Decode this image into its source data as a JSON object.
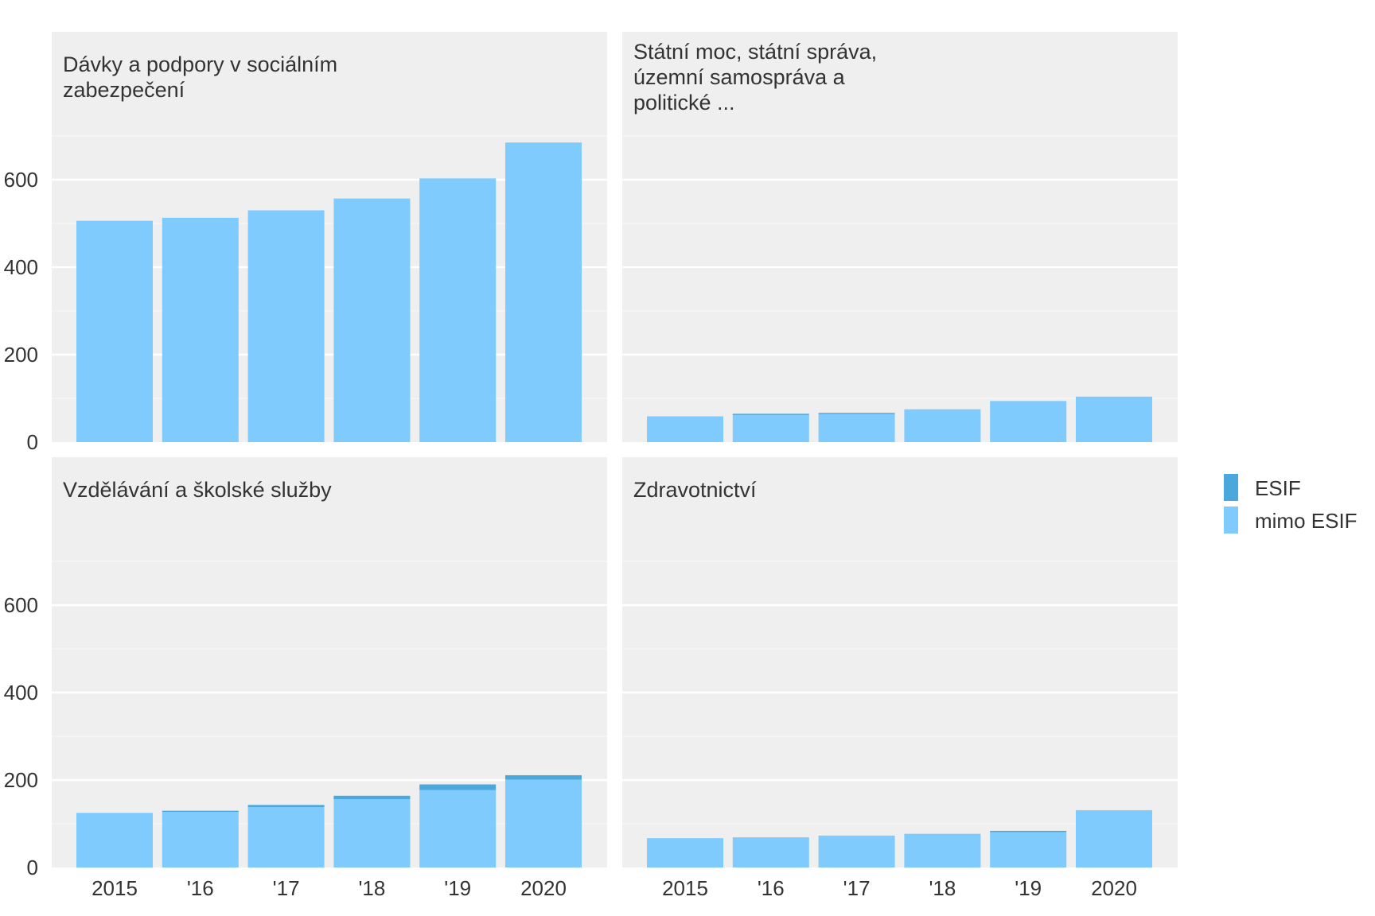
{
  "chart_data": {
    "type": "bar",
    "stacked": true,
    "layout": "facet-grid-2x2",
    "categories": [
      "2015",
      "'16",
      "'17",
      "'18",
      "'19",
      "2020"
    ],
    "y_ticks": [
      "0",
      "200",
      "400",
      "600"
    ],
    "ylim": [
      0,
      740
    ],
    "grid": true,
    "legend": {
      "position": "right",
      "entries": [
        {
          "name": "ESIF",
          "color": "#4aa8dc"
        },
        {
          "name": "mimo ESIF",
          "color": "#7fcbfd"
        }
      ]
    },
    "colors": {
      "panel_background": "#efefef",
      "gridline": "#ffffff",
      "ESIF": "#4aa8dc",
      "mimo ESIF": "#7fcbfd"
    },
    "panels": [
      {
        "title_lines": [
          "Dávky a podpory v sociálním",
          "zabezpečení"
        ],
        "series": [
          {
            "name": "mimo ESIF",
            "values": [
              506,
              513,
              530,
              557,
              603,
              685
            ]
          },
          {
            "name": "ESIF",
            "values": [
              0,
              0,
              0,
              0,
              0,
              0
            ]
          }
        ]
      },
      {
        "title_lines": [
          "Státní moc, státní správa,",
          "územní samospráva a",
          "politické ..."
        ],
        "series": [
          {
            "name": "mimo ESIF",
            "values": [
              59,
              62,
              64,
              75,
              94,
              104
            ]
          },
          {
            "name": "ESIF",
            "values": [
              0,
              1,
              1,
              0,
              0,
              0
            ]
          }
        ]
      },
      {
        "title_lines": [
          "Vzdělávání a školské služby"
        ],
        "series": [
          {
            "name": "mimo ESIF",
            "values": [
              125,
              127,
              138,
              156,
              177,
              201
            ]
          },
          {
            "name": "ESIF",
            "values": [
              0,
              2,
              5,
              8,
              13,
              10
            ]
          }
        ]
      },
      {
        "title_lines": [
          "Zdravotnictví"
        ],
        "series": [
          {
            "name": "mimo ESIF",
            "values": [
              67,
              69,
              73,
              77,
              81,
              131
            ]
          },
          {
            "name": "ESIF",
            "values": [
              0,
              0,
              0,
              0,
              1,
              0
            ]
          }
        ]
      }
    ]
  }
}
